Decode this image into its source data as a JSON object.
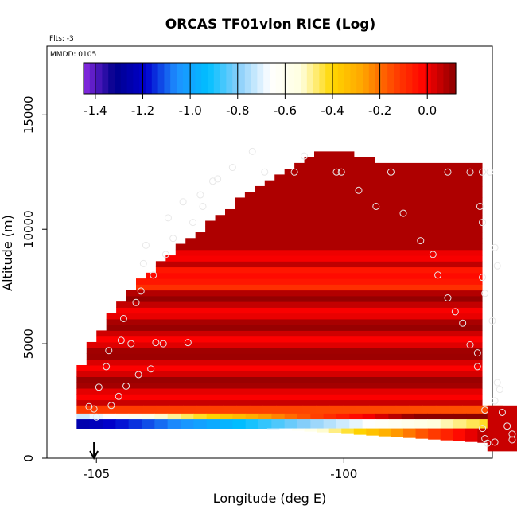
{
  "chart_data": {
    "type": "heatmap",
    "title": "ORCAS TF01vlon RICE (Log)",
    "flts_label": "Flts: -3",
    "mmdd_label": "MMDD: 0105",
    "xlabel": "Longitude (deg E)",
    "ylabel": "Altitude (m)",
    "xlim": [
      -106.0,
      -97.0
    ],
    "ylim": [
      0,
      18000
    ],
    "x_ticks": [
      -105,
      -100
    ],
    "x_tick_labels": [
      "-105",
      "-100"
    ],
    "y_ticks": [
      0,
      5000,
      10000,
      15000
    ],
    "y_tick_labels": [
      "0",
      "5000",
      "10000",
      "15000"
    ],
    "colorbar": {
      "range": [
        -1.45,
        0.12
      ],
      "ticks": [
        -1.4,
        -1.2,
        -1.0,
        -0.8,
        -0.6,
        -0.4,
        -0.2,
        0.0
      ],
      "tick_labels": [
        "-1.4",
        "-1.2",
        "-1.0",
        "-0.8",
        "-0.6",
        "-0.4",
        "-0.2",
        "0.0"
      ],
      "colors": [
        "#8a2be2",
        "#00008b",
        "#0000cd",
        "#1e90ff",
        "#00bfff",
        "#87cefa",
        "#ffffff",
        "#ffffe0",
        "#ffd700",
        "#ffa500",
        "#ff4500",
        "#ff0000",
        "#8b0000"
      ]
    },
    "arrow_marker_longitude": -105.05,
    "field": {
      "main_block": {
        "lon_min": -105.4,
        "lon_max": -97.2,
        "alt_min": 2300,
        "alt_max": 13400,
        "value": 0.05
      },
      "mid_band": {
        "alt_min": 7300,
        "alt_max": 8300,
        "value": -0.08
      },
      "lower_bands": [
        {
          "alt_min": 1950,
          "alt_max": 2300,
          "value": -0.12
        },
        {
          "alt_min": 1700,
          "alt_max": 1950,
          "value": -0.72
        },
        {
          "alt_min": 1300,
          "alt_max": 1700,
          "value": -1.25
        }
      ]
    },
    "sample_points": [
      [
        -105.15,
        2250
      ],
      [
        -105.05,
        2150
      ],
      [
        -105.0,
        1800
      ],
      [
        -104.95,
        3100
      ],
      [
        -104.8,
        4000
      ],
      [
        -104.75,
        4700
      ],
      [
        -104.7,
        2300
      ],
      [
        -104.55,
        2700
      ],
      [
        -104.5,
        5150
      ],
      [
        -104.45,
        6100
      ],
      [
        -104.4,
        3150
      ],
      [
        -104.3,
        5000
      ],
      [
        -104.2,
        6800
      ],
      [
        -104.15,
        3650
      ],
      [
        -104.1,
        7300
      ],
      [
        -104.05,
        8500
      ],
      [
        -104.0,
        9300
      ],
      [
        -103.9,
        3900
      ],
      [
        -103.85,
        8000
      ],
      [
        -103.8,
        5050
      ],
      [
        -103.65,
        5000
      ],
      [
        -103.6,
        8900
      ],
      [
        -103.55,
        10500
      ],
      [
        -103.45,
        9600
      ],
      [
        -103.25,
        11200
      ],
      [
        -103.15,
        5050
      ],
      [
        -103.05,
        10300
      ],
      [
        -102.9,
        11500
      ],
      [
        -102.85,
        11000
      ],
      [
        -102.65,
        12100
      ],
      [
        -102.55,
        12200
      ],
      [
        -102.25,
        12700
      ],
      [
        -101.85,
        13400
      ],
      [
        -101.6,
        12500
      ],
      [
        -101.0,
        12500
      ],
      [
        -100.8,
        13200
      ],
      [
        -100.15,
        12500
      ],
      [
        -100.05,
        12500
      ],
      [
        -99.7,
        11700
      ],
      [
        -99.35,
        11000
      ],
      [
        -99.05,
        12500
      ],
      [
        -98.8,
        10700
      ],
      [
        -98.45,
        9500
      ],
      [
        -98.2,
        8900
      ],
      [
        -98.1,
        8000
      ],
      [
        -97.9,
        12500
      ],
      [
        -97.9,
        7000
      ],
      [
        -97.75,
        6400
      ],
      [
        -97.6,
        5900
      ],
      [
        -97.45,
        12500
      ],
      [
        -97.45,
        4950
      ],
      [
        -97.3,
        4600
      ],
      [
        -97.3,
        4000
      ],
      [
        -97.25,
        11000
      ],
      [
        -97.2,
        12500
      ],
      [
        -97.2,
        10300
      ],
      [
        -97.2,
        7900
      ],
      [
        -97.15,
        7200
      ],
      [
        -97.05,
        12500
      ],
      [
        -97.0,
        6000
      ],
      [
        -96.95,
        9200
      ],
      [
        -96.9,
        8400
      ],
      [
        -96.9,
        3300
      ],
      [
        -96.85,
        3000
      ],
      [
        -96.8,
        2000
      ],
      [
        -96.95,
        2500
      ],
      [
        -97.15,
        2100
      ],
      [
        -97.2,
        1300
      ],
      [
        -97.15,
        850
      ],
      [
        -97.1,
        650
      ],
      [
        -96.95,
        700
      ],
      [
        -96.7,
        1400
      ],
      [
        -96.6,
        800
      ],
      [
        -96.6,
        1050
      ]
    ]
  }
}
